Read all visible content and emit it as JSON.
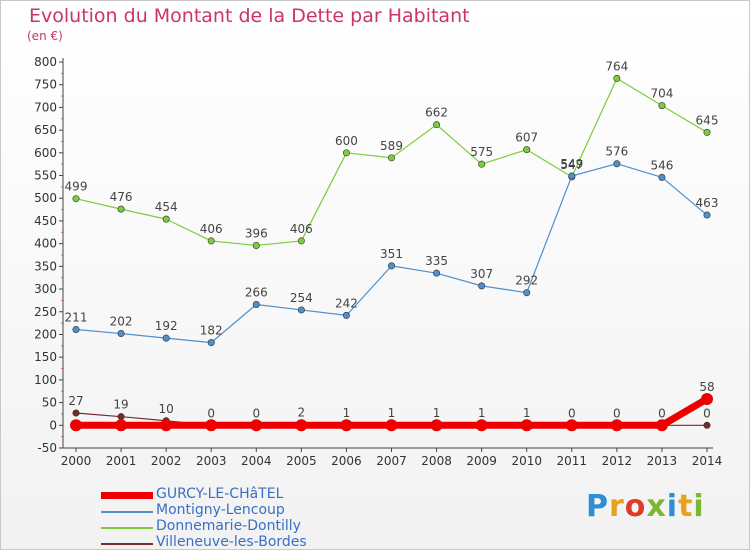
{
  "title": "Evolution du Montant de la Dette par Habitant",
  "unit": "(en €)",
  "logo": {
    "text": "Proxiti",
    "colors": [
      "#2d8fd4",
      "#e8a020",
      "#e03a2a",
      "#7ab82f",
      "#2d8fd4",
      "#e8a020",
      "#7ab82f"
    ]
  },
  "chart_data": {
    "type": "line",
    "x": [
      "2000",
      "2001",
      "2002",
      "2003",
      "2004",
      "2005",
      "2006",
      "2007",
      "2008",
      "2009",
      "2010",
      "2011",
      "2012",
      "2013",
      "2014"
    ],
    "ylim": [
      -50,
      800
    ],
    "yticks": [
      -50,
      0,
      50,
      100,
      150,
      200,
      250,
      300,
      350,
      400,
      450,
      500,
      550,
      600,
      650,
      700,
      750,
      800
    ],
    "grid": false,
    "legend_position": "bottom-left",
    "series": [
      {
        "name": "GURCY-LE-CHâTEL",
        "color": "#ee0000",
        "values": [
          0,
          0,
          0,
          0,
          0,
          0,
          0,
          0,
          0,
          0,
          0,
          0,
          0,
          0,
          58
        ],
        "labels": [
          "",
          "",
          "",
          "",
          "",
          "",
          "",
          "",
          "",
          "",
          "",
          "",
          "",
          "",
          "58"
        ]
      },
      {
        "name": "Montigny-Lencoup",
        "color": "#4f90cc",
        "values": [
          211,
          202,
          192,
          182,
          266,
          254,
          242,
          351,
          335,
          307,
          292,
          549,
          576,
          546,
          463
        ],
        "labels": [
          "211",
          "202",
          "192",
          "182",
          "266",
          "254",
          "242",
          "351",
          "335",
          "307",
          "292",
          "549",
          "576",
          "546",
          "463"
        ]
      },
      {
        "name": "Donnemarie-Dontilly",
        "color": "#7ccc3c",
        "values": [
          499,
          476,
          454,
          406,
          396,
          406,
          600,
          589,
          662,
          575,
          607,
          547,
          764,
          704,
          645
        ],
        "labels": [
          "499",
          "476",
          "454",
          "406",
          "396",
          "406",
          "600",
          "589",
          "662",
          "575",
          "607",
          "547",
          "764",
          "704",
          "645"
        ]
      },
      {
        "name": "Villeneuve-les-Bordes",
        "color": "#7a2a2a",
        "values": [
          27,
          19,
          10,
          0,
          0,
          2,
          1,
          1,
          1,
          1,
          1,
          0,
          0,
          0,
          0
        ],
        "labels": [
          "27",
          "19",
          "10",
          "0",
          "0",
          "2",
          "1",
          "1",
          "1",
          "1",
          "1",
          "0",
          "0",
          "0",
          "0"
        ]
      }
    ]
  }
}
